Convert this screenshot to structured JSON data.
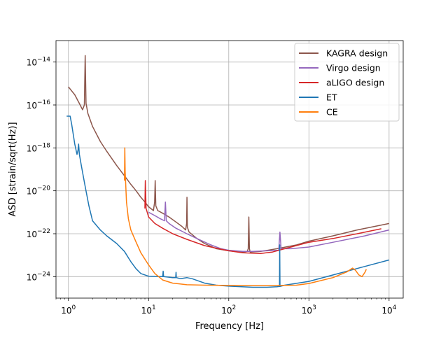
{
  "chart_data": {
    "type": "line",
    "xlabel": "Frequency [Hz]",
    "ylabel": "ASD [strain/sqrt(Hz)]",
    "xscale": "log",
    "yscale": "log",
    "xlim": [
      0.7,
      15000
    ],
    "ylim": [
      1e-25,
      1e-13
    ],
    "grid": true,
    "legend_position": "top-right",
    "x_ticks": [
      {
        "value": 1,
        "base": "10",
        "exp": "0"
      },
      {
        "value": 10,
        "base": "10",
        "exp": "1"
      },
      {
        "value": 100,
        "base": "10",
        "exp": "2"
      },
      {
        "value": 1000,
        "base": "10",
        "exp": "3"
      },
      {
        "value": 10000,
        "base": "10",
        "exp": "4"
      }
    ],
    "y_ticks": [
      {
        "value": 1e-24,
        "base": "10",
        "exp": "−24"
      },
      {
        "value": 1e-22,
        "base": "10",
        "exp": "−22"
      },
      {
        "value": 1e-20,
        "base": "10",
        "exp": "−20"
      },
      {
        "value": 1e-18,
        "base": "10",
        "exp": "−18"
      },
      {
        "value": 1e-16,
        "base": "10",
        "exp": "−16"
      },
      {
        "value": 1e-14,
        "base": "10",
        "exp": "−14"
      }
    ],
    "series": [
      {
        "name": "KAGRA design",
        "color": "#8c564b",
        "points": [
          [
            1,
            7e-16
          ],
          [
            1.2,
            3e-16
          ],
          [
            1.4,
            1e-16
          ],
          [
            1.5,
            6e-17
          ],
          [
            1.58,
            1e-16
          ],
          [
            1.62,
            2e-14
          ],
          [
            1.66,
            1.2e-16
          ],
          [
            1.75,
            4e-17
          ],
          [
            2,
            1e-17
          ],
          [
            2.5,
            2e-18
          ],
          [
            3,
            7e-19
          ],
          [
            4,
            1.5e-19
          ],
          [
            5,
            5e-20
          ],
          [
            6,
            2e-20
          ],
          [
            7,
            1e-20
          ],
          [
            8,
            5e-21
          ],
          [
            9,
            3e-21
          ],
          [
            10,
            1.8e-21
          ],
          [
            11.5,
            1.2e-21
          ],
          [
            11.9,
            3e-21
          ],
          [
            12.1,
            3e-20
          ],
          [
            12.3,
            2e-21
          ],
          [
            13,
            1.2e-21
          ],
          [
            15,
            9e-22
          ],
          [
            18,
            6e-22
          ],
          [
            22,
            3.5e-22
          ],
          [
            26,
            2.2e-22
          ],
          [
            29,
            1.5e-22
          ],
          [
            29.8,
            3e-22
          ],
          [
            30.1,
            5e-21
          ],
          [
            30.5,
            2e-22
          ],
          [
            32,
            1.2e-22
          ],
          [
            40,
            6e-23
          ],
          [
            50,
            3.5e-23
          ],
          [
            70,
            2e-23
          ],
          [
            100,
            1.6e-23
          ],
          [
            150,
            1.4e-23
          ],
          [
            170,
            1.5e-23
          ],
          [
            175,
            2e-23
          ],
          [
            178,
            6e-22
          ],
          [
            181,
            2e-23
          ],
          [
            185,
            1.4e-23
          ],
          [
            250,
            1.5e-23
          ],
          [
            400,
            2e-23
          ],
          [
            700,
            3e-23
          ],
          [
            1000,
            4.5e-23
          ],
          [
            2000,
            8e-23
          ],
          [
            4000,
            1.5e-22
          ],
          [
            10000,
            3e-22
          ]
        ]
      },
      {
        "name": "Virgo design",
        "color": "#9467bd",
        "points": [
          [
            10,
            1e-21
          ],
          [
            12,
            7e-22
          ],
          [
            14,
            5e-22
          ],
          [
            15.8,
            4e-22
          ],
          [
            16.2,
            3e-21
          ],
          [
            16.6,
            4e-22
          ],
          [
            18,
            3e-22
          ],
          [
            22,
            1.8e-22
          ],
          [
            30,
            1e-22
          ],
          [
            40,
            6e-23
          ],
          [
            60,
            3e-23
          ],
          [
            80,
            2e-23
          ],
          [
            100,
            1.7e-23
          ],
          [
            150,
            1.5e-23
          ],
          [
            200,
            1.5e-23
          ],
          [
            300,
            1.6e-23
          ],
          [
            420,
            1.7e-23
          ],
          [
            435,
            1.2e-22
          ],
          [
            450,
            2e-23
          ],
          [
            600,
            2e-23
          ],
          [
            1000,
            2.4e-23
          ],
          [
            2000,
            4e-23
          ],
          [
            5000,
            8e-23
          ],
          [
            10000,
            1.5e-22
          ]
        ]
      },
      {
        "name": "aLIGO design",
        "color": "#d62728",
        "points": [
          [
            9,
            1.5e-21
          ],
          [
            9.1,
            3e-20
          ],
          [
            9.3,
            1.5e-21
          ],
          [
            10,
            6e-22
          ],
          [
            12,
            3e-22
          ],
          [
            15,
            1.8e-22
          ],
          [
            20,
            1e-22
          ],
          [
            30,
            5.5e-23
          ],
          [
            50,
            2.8e-23
          ],
          [
            80,
            1.9e-23
          ],
          [
            100,
            1.6e-23
          ],
          [
            150,
            1.3e-23
          ],
          [
            250,
            1.2e-23
          ],
          [
            350,
            1.4e-23
          ],
          [
            500,
            2e-23
          ],
          [
            1000,
            4e-23
          ],
          [
            2000,
            6e-23
          ],
          [
            4000,
            1e-22
          ],
          [
            8000,
            1.7e-22
          ]
        ]
      },
      {
        "name": "ET",
        "color": "#1f77b4",
        "points": [
          [
            0.95,
            3e-17
          ],
          [
            1.05,
            3e-17
          ],
          [
            1.1,
            1.2e-17
          ],
          [
            1.2,
            1.5e-18
          ],
          [
            1.28,
            5e-19
          ],
          [
            1.32,
            8e-19
          ],
          [
            1.34,
            1.5e-18
          ],
          [
            1.37,
            5e-19
          ],
          [
            1.45,
            1.5e-19
          ],
          [
            1.6,
            2e-20
          ],
          [
            1.8,
            2e-21
          ],
          [
            2,
            4e-22
          ],
          [
            2.5,
            1.5e-22
          ],
          [
            3,
            8e-23
          ],
          [
            4,
            3.5e-23
          ],
          [
            5,
            1.5e-23
          ],
          [
            6,
            5e-24
          ],
          [
            7,
            2.3e-24
          ],
          [
            8,
            1.4e-24
          ],
          [
            10,
            1.05e-24
          ],
          [
            14,
            1e-24
          ],
          [
            15,
            1e-24
          ],
          [
            15.2,
            1.8e-24
          ],
          [
            15.4,
            1e-24
          ],
          [
            20,
            9e-25
          ],
          [
            21.8,
            9e-25
          ],
          [
            22,
            1.6e-24
          ],
          [
            22.2,
            9e-25
          ],
          [
            25,
            8e-25
          ],
          [
            30,
            9e-25
          ],
          [
            35,
            8e-25
          ],
          [
            50,
            5e-25
          ],
          [
            70,
            4e-25
          ],
          [
            100,
            3.6e-25
          ],
          [
            200,
            3.2e-25
          ],
          [
            300,
            3.2e-25
          ],
          [
            400,
            3.4e-25
          ],
          [
            430,
            3.5e-25
          ],
          [
            432,
            3e-23
          ],
          [
            436,
            3.5e-25
          ],
          [
            500,
            4e-25
          ],
          [
            1000,
            6e-25
          ],
          [
            2000,
            1.2e-24
          ],
          [
            5000,
            3e-24
          ],
          [
            10000,
            6e-24
          ]
        ]
      },
      {
        "name": "CE",
        "color": "#ff7f0e",
        "points": [
          [
            5,
            3e-20
          ],
          [
            5.05,
            1e-18
          ],
          [
            5.1,
            8e-20
          ],
          [
            5.3,
            3e-21
          ],
          [
            5.6,
            5e-22
          ],
          [
            6,
            1.5e-22
          ],
          [
            7,
            4e-23
          ],
          [
            8,
            1.3e-23
          ],
          [
            10,
            3.5e-24
          ],
          [
            12,
            1.4e-24
          ],
          [
            15,
            7e-25
          ],
          [
            20,
            5e-25
          ],
          [
            30,
            4.2e-25
          ],
          [
            50,
            4e-25
          ],
          [
            100,
            3.9e-25
          ],
          [
            300,
            3.8e-25
          ],
          [
            700,
            4e-25
          ],
          [
            1000,
            4.8e-25
          ],
          [
            2000,
            9e-25
          ],
          [
            3000,
            1.7e-24
          ],
          [
            3500,
            2.5e-24
          ],
          [
            3800,
            2e-24
          ],
          [
            4200,
            1.2e-24
          ],
          [
            4600,
            1e-24
          ],
          [
            5000,
            1.6e-24
          ],
          [
            5200,
            2.2e-24
          ]
        ]
      }
    ]
  }
}
